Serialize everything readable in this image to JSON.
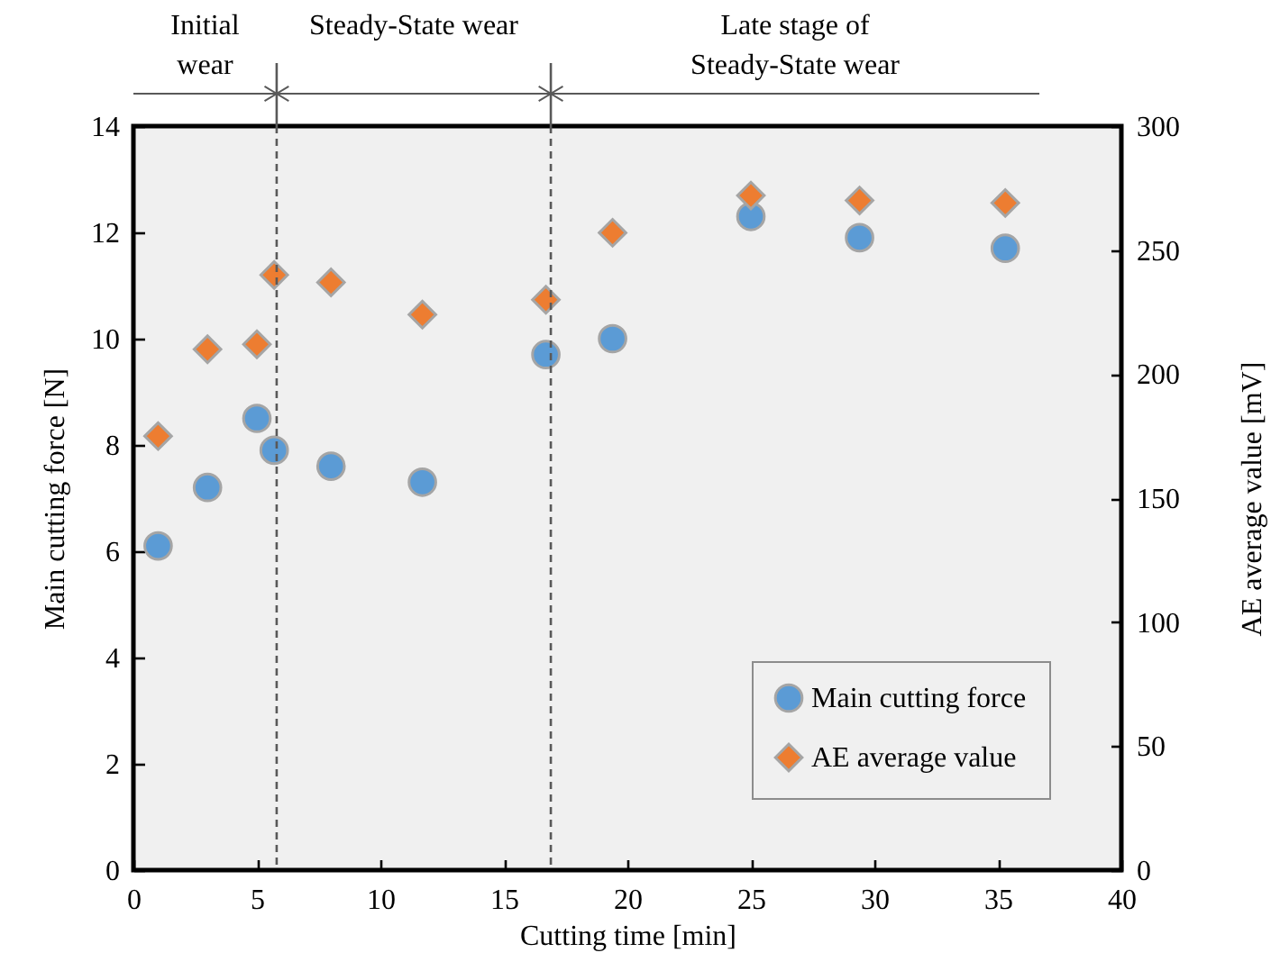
{
  "chart_data": {
    "type": "scatter",
    "xlabel": "Cutting time [min]",
    "ylabel": "Main cutting force [N]",
    "y2label": "AE average value [mV]",
    "x": [
      1.0,
      3.0,
      5.0,
      5.7,
      8.0,
      11.7,
      16.7,
      19.4,
      25.0,
      29.4,
      35.3
    ],
    "series": [
      {
        "name": "Main cutting force",
        "color": "#5b9bd5",
        "marker": "circle",
        "axis": "y",
        "values": [
          6.1,
          7.2,
          8.5,
          7.9,
          7.6,
          7.3,
          9.7,
          10.0,
          12.3,
          11.9,
          11.7
        ]
      },
      {
        "name": "AE average value",
        "color": "#ed7d31",
        "marker": "diamond",
        "axis": "y2",
        "values": [
          175,
          210,
          212,
          240,
          237,
          224,
          230,
          257,
          272,
          270,
          269
        ]
      }
    ],
    "xlim": [
      0,
      40
    ],
    "xticks": [
      0,
      5,
      10,
      15,
      20,
      25,
      30,
      35,
      40
    ],
    "ylim": [
      0,
      14
    ],
    "yticks": [
      0,
      2,
      4,
      6,
      8,
      10,
      12,
      14
    ],
    "y2lim": [
      0,
      300
    ],
    "y2ticks": [
      0,
      50,
      100,
      150,
      200,
      250,
      300
    ],
    "ref_lines": [
      {
        "axis": "x",
        "value": 5.8,
        "line_style": "dashed"
      },
      {
        "axis": "x",
        "value": 16.9,
        "line_style": "dashed"
      }
    ],
    "annotations": [
      "Initial\nwear",
      "Steady-State wear",
      "Late stage of\nSteady-State wear"
    ],
    "legend": "bottom right",
    "grid": false
  }
}
